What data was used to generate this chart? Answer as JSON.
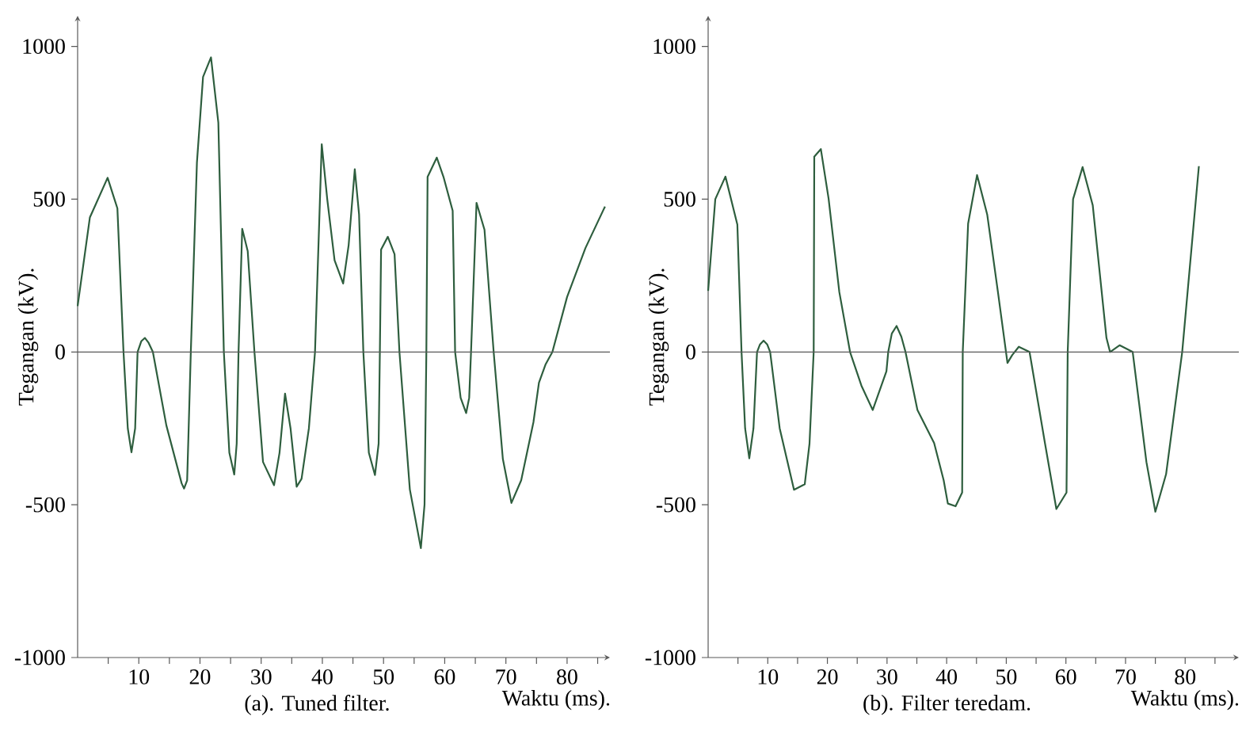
{
  "chart_data": [
    {
      "type": "line",
      "title": "(a). Tuned filter.",
      "xlabel": "Waktu (ms).",
      "ylabel": "Tegangan (kV).",
      "color": "#2e5e3e",
      "x": [
        0,
        2,
        4.9,
        6.5,
        7.5,
        8.2,
        8.8,
        9.4,
        9.8,
        10.4,
        11.0,
        11.6,
        12.3,
        14.5,
        17.0,
        17.4,
        17.9,
        18.1,
        18.5,
        19.5,
        20.5,
        21.8,
        23.0,
        23.9,
        24.8,
        25.6,
        26.0,
        26.3,
        26.9,
        27.8,
        28.9,
        30.3,
        32.1,
        33.0,
        33.9,
        34.8,
        35.8,
        36.6,
        37.8,
        38.8,
        39.9,
        40.8,
        42.0,
        43.4,
        44.3,
        45.3,
        46.0,
        46.7,
        47.6,
        48.6,
        49.2,
        49.4,
        49.6,
        50.7,
        51.8,
        52.6,
        54.3,
        56.1,
        56.7,
        57.0,
        57.2,
        58.7,
        59.8,
        61.3,
        61.7,
        62.6,
        63.5,
        64.0,
        64.3,
        65.2,
        66.5,
        68.0,
        69.5,
        70.9,
        72.5,
        74.5,
        75.4,
        76.5,
        77.6,
        80.0,
        83.0,
        86.2
      ],
      "values": [
        150,
        440,
        570,
        470,
        0,
        -250,
        -328,
        -250,
        0,
        35,
        46,
        30,
        0,
        -240,
        -430,
        -447,
        -420,
        -284,
        0,
        620,
        900,
        964,
        750,
        0,
        -330,
        -401,
        -300,
        0,
        403,
        330,
        0,
        -360,
        -436,
        -330,
        -136,
        -250,
        -441,
        -415,
        -250,
        0,
        680,
        500,
        300,
        224,
        350,
        598,
        450,
        0,
        -330,
        -403,
        -300,
        0,
        335,
        377,
        320,
        0,
        -450,
        -642,
        -500,
        0,
        573,
        636,
        573,
        462,
        0,
        -150,
        -200,
        -150,
        0,
        488,
        400,
        0,
        -350,
        -494,
        -420,
        -230,
        -101,
        -40,
        0,
        180,
        340,
        476
      ],
      "xlim": [
        0,
        87
      ],
      "ylim": [
        -1000,
        1100
      ],
      "xticks": [
        {
          "value": 5,
          "label": null
        },
        10,
        {
          "value": 15,
          "label": null
        },
        20,
        {
          "value": 25,
          "label": null
        },
        30,
        {
          "value": 35,
          "label": null
        },
        40,
        {
          "value": 45,
          "label": null
        },
        50,
        {
          "value": 55,
          "label": null
        },
        60,
        {
          "value": 65,
          "label": null
        },
        70,
        {
          "value": 75,
          "label": null
        },
        80,
        {
          "value": 85,
          "label": null
        }
      ],
      "yticks": [
        -1000,
        -500,
        0,
        500,
        1000
      ],
      "ref_lines": [
        {
          "axis": "y",
          "value": 0
        }
      ]
    },
    {
      "type": "line",
      "title": "(b). Filter teredam.",
      "xlabel": "Waktu (ms).",
      "ylabel": "Tegangan (kV).",
      "color": "#2e5e3e",
      "x": [
        0,
        1.2,
        2.9,
        4.9,
        5.6,
        6.2,
        6.9,
        7.6,
        8.2,
        8.7,
        9.3,
        9.9,
        10.4,
        12.0,
        14.4,
        16.2,
        17.0,
        17.7,
        17.8,
        18.9,
        20.2,
        22.0,
        23.8,
        25.7,
        27.6,
        29.9,
        30.2,
        30.8,
        31.6,
        32.4,
        33.1,
        35.1,
        37.9,
        39.5,
        40.2,
        41.5,
        42.6,
        42.7,
        43.6,
        45.1,
        46.8,
        48.6,
        50.2,
        51.0,
        52.1,
        53.9,
        56.5,
        58.4,
        60.1,
        60.3,
        61.2,
        62.8,
        64.5,
        66.8,
        67.4,
        69.0,
        71.2,
        73.5,
        75.0,
        76.8,
        79.5,
        82.3
      ],
      "values": [
        200,
        500,
        574,
        417,
        0,
        -250,
        -348,
        -250,
        0,
        25,
        37,
        25,
        0,
        -250,
        -451,
        -433,
        -300,
        0,
        639,
        664,
        502,
        196,
        0,
        -110,
        -190,
        -63,
        0,
        60,
        85,
        50,
        0,
        -190,
        -298,
        -420,
        -496,
        -505,
        -460,
        0,
        420,
        579,
        450,
        196,
        -36,
        -10,
        17,
        0,
        -300,
        -514,
        -460,
        0,
        500,
        605,
        480,
        46,
        0,
        22,
        0,
        -360,
        -523,
        -400,
        0,
        608
      ],
      "xlim": [
        0,
        89
      ],
      "ylim": [
        -1000,
        1100
      ],
      "xticks": [
        {
          "value": 5,
          "label": null
        },
        10,
        {
          "value": 15,
          "label": null
        },
        20,
        {
          "value": 25,
          "label": null
        },
        30,
        {
          "value": 35,
          "label": null
        },
        40,
        {
          "value": 45,
          "label": null
        },
        50,
        {
          "value": 55,
          "label": null
        },
        60,
        {
          "value": 65,
          "label": null
        },
        70,
        {
          "value": 75,
          "label": null
        },
        80,
        {
          "value": 85,
          "label": null
        }
      ],
      "yticks": [
        -1000,
        -500,
        0,
        500,
        1000
      ],
      "ref_lines": [
        {
          "axis": "y",
          "value": 0
        }
      ]
    }
  ]
}
